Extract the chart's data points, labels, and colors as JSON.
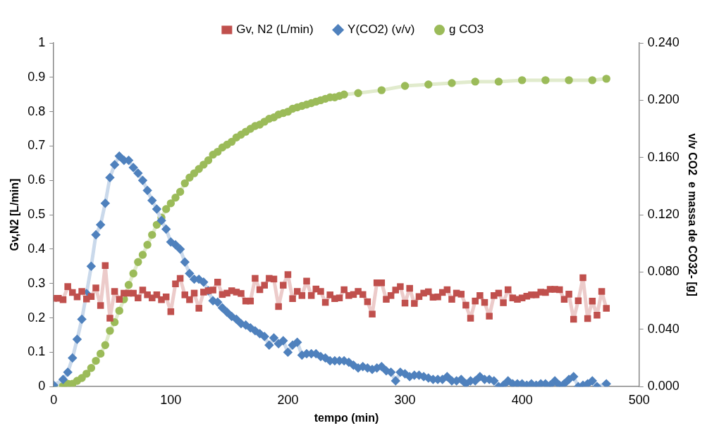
{
  "chart_data": {
    "type": "line",
    "xlabel": "tempo (min)",
    "ylabel": "Gv,N2 [L/min]",
    "y2label": "v/v CO2  e massa de CO32- [g]",
    "xlim": [
      0,
      500
    ],
    "xticks": [
      0,
      100,
      200,
      300,
      400,
      500
    ],
    "ylim": [
      0,
      1
    ],
    "yticks": [
      0,
      0.1,
      0.2,
      0.3,
      0.4,
      0.5,
      0.6,
      0.7,
      0.8,
      0.9,
      1
    ],
    "y2lim": [
      0,
      0.24
    ],
    "y2ticks": [
      {
        "value": 0,
        "label": "0.000"
      },
      {
        "value": 0.04,
        "label": "0.040"
      },
      {
        "value": 0.08,
        "label": "0.080"
      },
      {
        "value": 0.12,
        "label": "0.120"
      },
      {
        "value": 0.16,
        "label": "0.160"
      },
      {
        "value": 0.2,
        "label": "0.200"
      },
      {
        "value": 0.24,
        "label": "0.240"
      }
    ],
    "grid": false,
    "legend": "top",
    "series": [
      {
        "name": "Gv, N2 (L/min)",
        "color": "#c0504d",
        "marker": "square",
        "x": [
          0,
          4,
          8,
          12,
          16,
          20,
          24,
          28,
          32,
          36,
          40,
          44,
          48,
          52,
          56,
          60,
          64,
          68,
          72,
          76,
          80,
          84,
          88,
          92,
          96,
          100,
          104,
          108,
          112,
          116,
          120,
          124,
          128,
          132,
          136,
          140,
          144,
          148,
          152,
          156,
          160,
          164,
          168,
          172,
          176,
          180,
          184,
          188,
          192,
          196,
          200,
          204,
          208,
          212,
          216,
          220,
          224,
          228,
          232,
          236,
          240,
          244,
          248,
          252,
          256,
          260,
          264,
          268,
          272,
          276,
          280,
          284,
          288,
          292,
          296,
          300,
          304,
          308,
          312,
          316,
          320,
          324,
          328,
          332,
          336,
          340,
          344,
          348,
          352,
          356,
          360,
          364,
          368,
          372,
          376,
          380,
          384,
          388,
          392,
          396,
          400,
          404,
          408,
          412,
          416,
          420,
          424,
          428,
          432,
          436,
          440,
          444,
          448,
          452,
          456,
          460,
          464,
          468,
          472
        ],
        "values": [
          0.257,
          0.257,
          0.253,
          0.291,
          0.274,
          0.261,
          0.277,
          0.255,
          0.262,
          0.287,
          0.236,
          0.352,
          0.199,
          0.277,
          0.254,
          0.272,
          0.272,
          0.272,
          0.258,
          0.281,
          0.267,
          0.258,
          0.267,
          0.253,
          0.261,
          0.218,
          0.299,
          0.315,
          0.267,
          0.253,
          0.272,
          0.228,
          0.275,
          0.279,
          0.281,
          0.304,
          0.268,
          0.272,
          0.279,
          0.275,
          0.271,
          0.249,
          0.249,
          0.315,
          0.282,
          0.295,
          0.315,
          0.313,
          0.233,
          0.295,
          0.326,
          0.256,
          0.277,
          0.265,
          0.307,
          0.265,
          0.284,
          0.277,
          0.245,
          0.267,
          0.256,
          0.258,
          0.282,
          0.265,
          0.268,
          0.277,
          0.268,
          0.247,
          0.211,
          0.302,
          0.302,
          0.254,
          0.265,
          0.281,
          0.291,
          0.243,
          0.286,
          0.242,
          0.262,
          0.272,
          0.276,
          0.26,
          0.261,
          0.274,
          0.282,
          0.254,
          0.272,
          0.269,
          0.237,
          0.199,
          0.249,
          0.265,
          0.245,
          0.205,
          0.265,
          0.272,
          0.244,
          0.282,
          0.258,
          0.254,
          0.258,
          0.263,
          0.267,
          0.267,
          0.275,
          0.274,
          0.283,
          0.283,
          0.282,
          0.254,
          0.269,
          0.196,
          0.25,
          0.317,
          0.198,
          0.249,
          0.208,
          0.277,
          0.228
        ]
      },
      {
        "name": "Y(CO2) (v/v)",
        "color": "#4f81bd",
        "marker": "diamond",
        "axis": "y2",
        "x": [
          0,
          8,
          12,
          16,
          20,
          24,
          28,
          32,
          36,
          40,
          44,
          48,
          52,
          56,
          60,
          64,
          68,
          72,
          76,
          80,
          84,
          88,
          92,
          96,
          100,
          104,
          108,
          112,
          116,
          120,
          124,
          128,
          132,
          136,
          140,
          144,
          148,
          152,
          156,
          160,
          164,
          168,
          172,
          176,
          180,
          184,
          188,
          192,
          196,
          200,
          204,
          208,
          212,
          216,
          220,
          224,
          228,
          232,
          236,
          240,
          244,
          248,
          252,
          256,
          260,
          264,
          268,
          272,
          276,
          280,
          284,
          288,
          292,
          296,
          300,
          304,
          308,
          312,
          316,
          320,
          324,
          328,
          332,
          336,
          340,
          344,
          348,
          352,
          356,
          360,
          364,
          368,
          372,
          376,
          380,
          384,
          388,
          392,
          396,
          400,
          404,
          408,
          412,
          416,
          420,
          424,
          428,
          432,
          436,
          440,
          444,
          448,
          452,
          456,
          460,
          464,
          472
        ],
        "values": [
          0.001,
          0.005,
          0.01,
          0.02,
          0.033,
          0.047,
          0.065,
          0.084,
          0.106,
          0.113,
          0.128,
          0.146,
          0.155,
          0.161,
          0.158,
          0.158,
          0.153,
          0.149,
          0.144,
          0.137,
          0.13,
          0.124,
          0.116,
          0.11,
          0.101,
          0.099,
          0.096,
          0.087,
          0.079,
          0.075,
          0.075,
          0.073,
          0.067,
          0.06,
          0.059,
          0.055,
          0.052,
          0.049,
          0.047,
          0.044,
          0.043,
          0.041,
          0.039,
          0.037,
          0.035,
          0.029,
          0.034,
          0.03,
          0.032,
          0.024,
          0.029,
          0.031,
          0.022,
          0.023,
          0.023,
          0.023,
          0.021,
          0.02,
          0.018,
          0.018,
          0.018,
          0.018,
          0.017,
          0.015,
          0.013,
          0.014,
          0.013,
          0.012,
          0.013,
          0.014,
          0.011,
          0.01,
          0.004,
          0.01,
          0.009,
          0.007,
          0.008,
          0.008,
          0.007,
          0.006,
          0.005,
          0.005,
          0.005,
          0.007,
          0.004,
          0.004,
          0.005,
          0.002,
          0.004,
          0.004,
          0.007,
          0.005,
          0.005,
          0.004,
          0,
          0.001,
          0.004,
          0.002,
          0.002,
          0.002,
          0.001,
          0.002,
          0.001,
          0.002,
          0.002,
          0.001,
          0.004,
          0.001,
          0.002,
          0.005,
          0.007,
          0,
          0.001,
          0.002,
          0.004,
          0,
          0.002
        ]
      },
      {
        "name": "g CO3",
        "color": "#9bbb59",
        "marker": "circle",
        "axis": "y2",
        "x": [
          0,
          8,
          12,
          16,
          20,
          24,
          28,
          32,
          36,
          40,
          44,
          48,
          52,
          56,
          60,
          64,
          68,
          72,
          76,
          80,
          84,
          88,
          92,
          96,
          100,
          104,
          108,
          112,
          116,
          120,
          124,
          128,
          132,
          136,
          140,
          144,
          148,
          152,
          156,
          160,
          164,
          168,
          172,
          176,
          180,
          184,
          188,
          192,
          196,
          200,
          204,
          208,
          212,
          216,
          220,
          224,
          228,
          232,
          236,
          240,
          244,
          248,
          260,
          280,
          300,
          320,
          340,
          360,
          380,
          400,
          420,
          440,
          460,
          472
        ],
        "values": [
          0,
          0.001,
          0.002,
          0.002,
          0.004,
          0.006,
          0.009,
          0.013,
          0.018,
          0.023,
          0.029,
          0.039,
          0.045,
          0.053,
          0.061,
          0.071,
          0.079,
          0.087,
          0.092,
          0.099,
          0.106,
          0.113,
          0.118,
          0.124,
          0.128,
          0.132,
          0.136,
          0.142,
          0.146,
          0.149,
          0.152,
          0.155,
          0.158,
          0.162,
          0.164,
          0.167,
          0.169,
          0.171,
          0.174,
          0.176,
          0.178,
          0.18,
          0.182,
          0.183,
          0.185,
          0.187,
          0.188,
          0.19,
          0.191,
          0.192,
          0.194,
          0.195,
          0.196,
          0.197,
          0.198,
          0.199,
          0.2,
          0.201,
          0.202,
          0.202,
          0.203,
          0.204,
          0.205,
          0.207,
          0.21,
          0.211,
          0.212,
          0.213,
          0.213,
          0.214,
          0.214,
          0.214,
          0.214,
          0.215
        ]
      }
    ]
  }
}
